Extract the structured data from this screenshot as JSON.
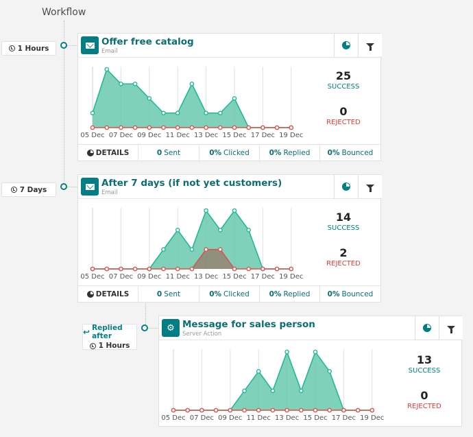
{
  "workflow_title": "Workflow",
  "colors": {
    "accent": "#017e84",
    "success_fill": "#5fc7a8",
    "success_line": "#21b799",
    "rejected": "#d9534f"
  },
  "activities": [
    {
      "trigger": "1 Hours",
      "title": "Offer free catalog",
      "type": "Email",
      "success": "25",
      "success_label": "SUCCESS",
      "rejected": "0",
      "rejected_label": "REJECTED",
      "details": "DETAILS",
      "sent_num": "0",
      "sent_label": "Sent",
      "clicked_num": "0%",
      "clicked_label": "Clicked",
      "replied_num": "0%",
      "replied_label": "Replied",
      "bounced_num": "0%",
      "bounced_label": "Bounced"
    },
    {
      "trigger": "7 Days",
      "title": "After 7 days (if not yet customers)",
      "type": "Email",
      "success": "14",
      "success_label": "SUCCESS",
      "rejected": "2",
      "rejected_label": "REJECTED",
      "details": "DETAILS",
      "sent_num": "0",
      "sent_label": "Sent",
      "clicked_num": "0%",
      "clicked_label": "Clicked",
      "replied_num": "0%",
      "replied_label": "Replied",
      "bounced_num": "0%",
      "bounced_label": "Bounced"
    },
    {
      "trigger_line1": "Replied after",
      "trigger": "1 Hours",
      "title": "Message for sales person",
      "type": "Server Action",
      "success": "13",
      "success_label": "SUCCESS",
      "rejected": "0",
      "rejected_label": "REJECTED"
    }
  ],
  "chart_data": [
    {
      "type": "area",
      "x": [
        "05 Dec",
        "06 Dec",
        "07 Dec",
        "08 Dec",
        "09 Dec",
        "10 Dec",
        "11 Dec",
        "12 Dec",
        "13 Dec",
        "14 Dec",
        "15 Dec",
        "16 Dec",
        "17 Dec",
        "18 Dec",
        "19 Dec"
      ],
      "tick_labels": [
        "05 Dec",
        "07 Dec",
        "09 Dec",
        "11 Dec",
        "13 Dec",
        "15 Dec",
        "17 Dec",
        "19 Dec"
      ],
      "series": [
        {
          "name": "SUCCESS",
          "values": [
            1,
            4,
            3,
            3,
            2,
            1,
            1,
            3,
            1,
            1,
            2,
            0,
            0,
            0,
            0
          ]
        },
        {
          "name": "REJECTED",
          "values": [
            0,
            0,
            0,
            0,
            0,
            0,
            0,
            0,
            0,
            0,
            0,
            0,
            0,
            0,
            0
          ]
        }
      ],
      "ylim": [
        0,
        4
      ]
    },
    {
      "type": "area",
      "x": [
        "05 Dec",
        "06 Dec",
        "07 Dec",
        "08 Dec",
        "09 Dec",
        "10 Dec",
        "11 Dec",
        "12 Dec",
        "13 Dec",
        "14 Dec",
        "15 Dec",
        "16 Dec",
        "17 Dec",
        "18 Dec",
        "19 Dec"
      ],
      "tick_labels": [
        "05 Dec",
        "07 Dec",
        "09 Dec",
        "11 Dec",
        "13 Dec",
        "15 Dec",
        "17 Dec",
        "19 Dec"
      ],
      "series": [
        {
          "name": "SUCCESS",
          "values": [
            0,
            0,
            0,
            0,
            0,
            1,
            2,
            1,
            3,
            2,
            3,
            2,
            0,
            0,
            0
          ]
        },
        {
          "name": "REJECTED",
          "values": [
            0,
            0,
            0,
            0,
            0,
            0,
            0,
            0,
            1,
            1,
            0,
            0,
            0,
            0,
            0
          ]
        }
      ],
      "ylim": [
        0,
        3
      ]
    },
    {
      "type": "area",
      "x": [
        "05 Dec",
        "06 Dec",
        "07 Dec",
        "08 Dec",
        "09 Dec",
        "10 Dec",
        "11 Dec",
        "12 Dec",
        "13 Dec",
        "14 Dec",
        "15 Dec",
        "16 Dec",
        "17 Dec",
        "18 Dec",
        "19 Dec"
      ],
      "tick_labels": [
        "05 Dec",
        "07 Dec",
        "09 Dec",
        "11 Dec",
        "13 Dec",
        "15 Dec",
        "17 Dec",
        "19 Dec"
      ],
      "series": [
        {
          "name": "SUCCESS",
          "values": [
            0,
            0,
            0,
            0,
            0,
            1,
            2,
            1,
            3,
            1,
            3,
            2,
            0,
            0,
            0
          ]
        },
        {
          "name": "REJECTED",
          "values": [
            0,
            0,
            0,
            0,
            0,
            0,
            0,
            0,
            0,
            0,
            0,
            0,
            0,
            0,
            0
          ]
        }
      ],
      "ylim": [
        0,
        3
      ]
    }
  ]
}
